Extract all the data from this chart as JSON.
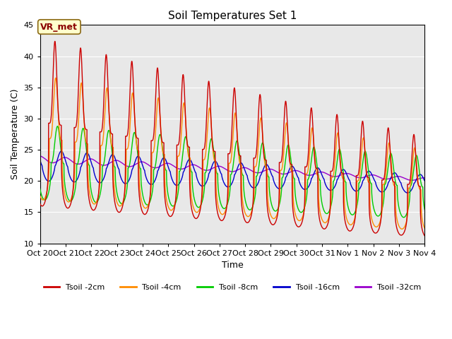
{
  "title": "Soil Temperatures Set 1",
  "xlabel": "Time",
  "ylabel": "Soil Temperature (C)",
  "ylim": [
    10,
    45
  ],
  "annotation_text": "VR_met",
  "colors": {
    "2cm": "#cc0000",
    "4cm": "#ff8c00",
    "8cm": "#00cc00",
    "16cm": "#0000cc",
    "32cm": "#9900cc"
  },
  "legend_labels": [
    "Tsoil -2cm",
    "Tsoil -4cm",
    "Tsoil -8cm",
    "Tsoil -16cm",
    "Tsoil -32cm"
  ],
  "plot_bg_color": "#e8e8e8",
  "tick_labels": [
    "Oct 20",
    "Oct 21",
    "Oct 22",
    "Oct 23",
    "Oct 24",
    "Oct 25",
    "Oct 26",
    "Oct 27",
    "Oct 28",
    "Oct 29",
    "Oct 30",
    "Oct 31",
    "Nov 1",
    "Nov 2",
    "Nov 3",
    "Nov 4"
  ]
}
